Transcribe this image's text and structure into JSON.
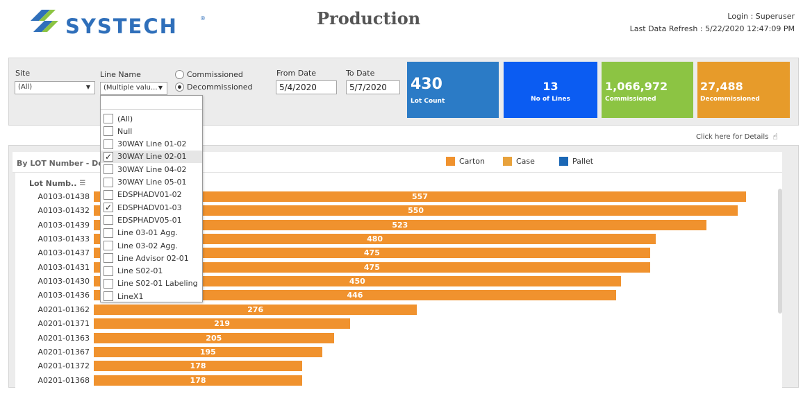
{
  "header": {
    "logo_text": "SYSTECH",
    "logo_reg": "®",
    "title": "Production",
    "login": "Login : Superuser",
    "refresh": "Last Data Refresh : 5/22/2020 12:47:09 PM"
  },
  "filters": {
    "site": {
      "label": "Site",
      "value": "(All)"
    },
    "line_name": {
      "label": "Line Name",
      "value": "(Multiple valu..."
    },
    "radios": [
      {
        "label": "Commissioned",
        "selected": false
      },
      {
        "label": "Decommissioned",
        "selected": true
      }
    ],
    "from_date": {
      "label": "From Date",
      "value": "5/4/2020"
    },
    "to_date": {
      "label": "To Date",
      "value": "5/7/2020"
    }
  },
  "kpis": [
    {
      "value": "430",
      "label": "Lot Count",
      "color": "#2b7bc6"
    },
    {
      "value": "13",
      "label": "No of Lines",
      "color": "#0b5cf2"
    },
    {
      "value": "1,066,972",
      "label": "Commissioned",
      "color": "#8cc443"
    },
    {
      "value": "27,488",
      "label": "Decommissioned",
      "color": "#e79b2a"
    }
  ],
  "details_link": "Click here for Details",
  "chart": {
    "title": "By LOT Number - Decc",
    "axis_header": "Lot Numb..",
    "legend": [
      {
        "name": "Carton",
        "color": "#f0922e"
      },
      {
        "name": "Case",
        "color": "#e8a23c"
      },
      {
        "name": "Pallet",
        "color": "#1b67b5"
      }
    ]
  },
  "chart_data": {
    "type": "bar",
    "orientation": "horizontal",
    "categories": [
      "A0103-01438",
      "A0103-01432",
      "A0103-01439",
      "A0103-01433",
      "A0103-01437",
      "A0103-01431",
      "A0103-01430",
      "A0103-01436",
      "A0201-01362",
      "A0201-01371",
      "A0201-01363",
      "A0201-01367",
      "A0201-01372",
      "A0201-01368"
    ],
    "series": [
      {
        "name": "Carton",
        "values": [
          557,
          550,
          523,
          480,
          475,
          475,
          450,
          446,
          276,
          219,
          205,
          195,
          178,
          178
        ]
      }
    ],
    "data_labels": [
      "557",
      "550",
      "523",
      "480",
      "475",
      "475",
      "450",
      "446",
      "276",
      "219",
      "205",
      "195",
      "178",
      "178"
    ],
    "legend_position": "top"
  },
  "line_popup": {
    "options": [
      {
        "label": "(All)",
        "checked": false
      },
      {
        "label": "Null",
        "checked": false
      },
      {
        "label": "30WAY Line 01-02",
        "checked": false
      },
      {
        "label": "30WAY Line 02-01",
        "checked": true,
        "highlighted": true
      },
      {
        "label": "30WAY Line 04-02",
        "checked": false
      },
      {
        "label": "30WAY Line 05-01",
        "checked": false
      },
      {
        "label": "EDSPHADV01-02",
        "checked": false
      },
      {
        "label": "EDSPHADV01-03",
        "checked": true
      },
      {
        "label": "EDSPHADV05-01",
        "checked": false
      },
      {
        "label": "Line 03-01 Agg.",
        "checked": false
      },
      {
        "label": "Line 03-02 Agg.",
        "checked": false
      },
      {
        "label": "Line Advisor 02-01",
        "checked": false
      },
      {
        "label": "Line S02-01",
        "checked": false
      },
      {
        "label": "Line S02-01 Labeling",
        "checked": false
      },
      {
        "label": "LineX1",
        "checked": false
      }
    ]
  }
}
